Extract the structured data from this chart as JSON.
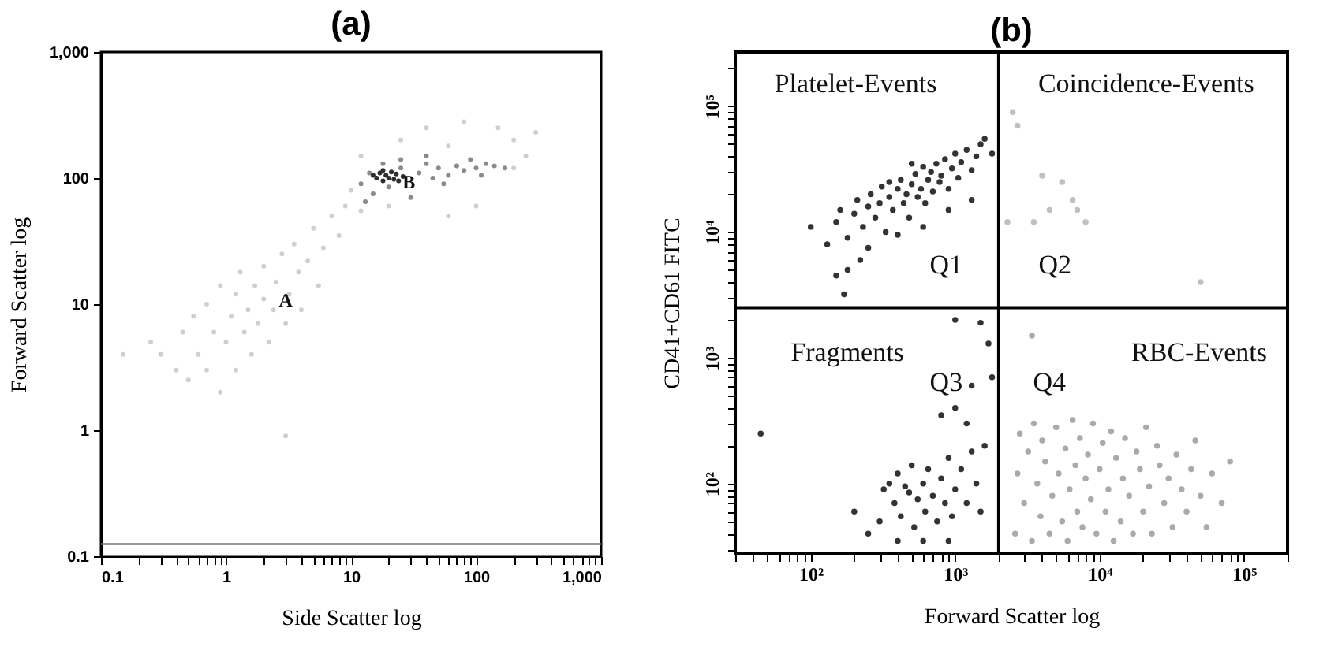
{
  "chart_data": [
    {
      "type": "scatter",
      "title": "(a)",
      "xlabel": "Side Scatter log",
      "ylabel": "Forward Scatter log",
      "log": "xy",
      "marker": "circle",
      "xlim": [
        0.1,
        1000
      ],
      "ylim": [
        0.1,
        1000
      ],
      "xticks": [
        0.1,
        {
          "value": 0.2,
          "label": null
        },
        {
          "value": 0.3,
          "label": null
        },
        {
          "value": 0.4,
          "label": null
        },
        {
          "value": 0.5,
          "label": null
        },
        {
          "value": 0.6,
          "label": null
        },
        {
          "value": 0.7,
          "label": null
        },
        {
          "value": 0.8,
          "label": null
        },
        {
          "value": 0.9,
          "label": null
        },
        1,
        {
          "value": 2,
          "label": null
        },
        {
          "value": 3,
          "label": null
        },
        {
          "value": 4,
          "label": null
        },
        {
          "value": 5,
          "label": null
        },
        {
          "value": 6,
          "label": null
        },
        {
          "value": 7,
          "label": null
        },
        {
          "value": 8,
          "label": null
        },
        {
          "value": 9,
          "label": null
        },
        10,
        {
          "value": 20,
          "label": null
        },
        {
          "value": 30,
          "label": null
        },
        {
          "value": 40,
          "label": null
        },
        {
          "value": 50,
          "label": null
        },
        {
          "value": 60,
          "label": null
        },
        {
          "value": 70,
          "label": null
        },
        {
          "value": 80,
          "label": null
        },
        {
          "value": 90,
          "label": null
        },
        100,
        {
          "value": 200,
          "label": null
        },
        {
          "value": 300,
          "label": null
        },
        {
          "value": 400,
          "label": null
        },
        {
          "value": 500,
          "label": null
        },
        {
          "value": 600,
          "label": null
        },
        {
          "value": 700,
          "label": null
        },
        {
          "value": 800,
          "label": null
        },
        {
          "value": 900,
          "label": null
        },
        {
          "value": 1000,
          "label": "1,000"
        }
      ],
      "yticks": [
        0.1,
        1,
        10,
        100,
        {
          "value": 1000,
          "label": "1,000"
        }
      ],
      "ref_lines": [
        {
          "axis": "y",
          "value": 0.125,
          "color": "#777777"
        }
      ],
      "annotations": [
        {
          "text": "A",
          "x": 3,
          "y": 10.7
        },
        {
          "text": "B",
          "x": 29,
          "y": 93
        }
      ],
      "series": [
        {
          "color": "#cfcfcf",
          "x": [
            0.25,
            0.3,
            0.4,
            0.45,
            0.5,
            0.55,
            0.6,
            0.7,
            0.7,
            0.8,
            0.9,
            0.9,
            1,
            1.1,
            1.2,
            1.2,
            1.3,
            1.4,
            1.5,
            1.6,
            1.7,
            1.8,
            2,
            2,
            2.2,
            2.4,
            2.5,
            2.8,
            3,
            3.2,
            3.5,
            3.8,
            4,
            4.5,
            5,
            5.5,
            6,
            7,
            8,
            9,
            3,
            10,
            12,
            12,
            20,
            25,
            40,
            60,
            80,
            150,
            200,
            250,
            300,
            100,
            60,
            0.15,
            200
          ],
          "values": [
            5,
            4,
            3,
            6,
            2.5,
            8,
            4,
            3,
            10,
            6,
            2,
            14,
            5,
            8,
            3,
            12,
            18,
            6,
            9,
            4,
            14,
            7,
            11,
            20,
            5,
            9,
            15,
            25,
            7,
            12,
            30,
            18,
            9,
            22,
            40,
            14,
            28,
            50,
            35,
            60,
            0.9,
            80,
            55,
            150,
            60,
            200,
            250,
            180,
            280,
            250,
            200,
            150,
            230,
            60,
            50,
            4,
            120
          ]
        },
        {
          "color": "#8a8a8a",
          "x": [
            12,
            14,
            15,
            18,
            20,
            25,
            35,
            40,
            45,
            50,
            60,
            70,
            80,
            100,
            120,
            140,
            170,
            90,
            30,
            13,
            55,
            110,
            40,
            25
          ],
          "values": [
            90,
            110,
            75,
            130,
            85,
            120,
            110,
            130,
            100,
            120,
            105,
            125,
            115,
            120,
            130,
            125,
            120,
            140,
            70,
            65,
            90,
            105,
            150,
            140
          ]
        },
        {
          "color": "#2e2e2e",
          "x": [
            16,
            17,
            18,
            19,
            20,
            21,
            22,
            23,
            15,
            18,
            24,
            26
          ],
          "values": [
            100,
            110,
            95,
            105,
            100,
            112,
            98,
            108,
            105,
            115,
            95,
            103
          ]
        }
      ]
    },
    {
      "type": "scatter",
      "title": "(b)",
      "xlabel": "Forward Scatter log",
      "ylabel": "CD41+CD61 FITC",
      "log": "xy",
      "marker": "circle",
      "xlim": [
        30,
        200000
      ],
      "ylim": [
        28,
        270000
      ],
      "xticks": [
        {
          "value": 30,
          "label": null
        },
        {
          "value": 40,
          "label": null
        },
        {
          "value": 50,
          "label": null
        },
        {
          "value": 60,
          "label": null
        },
        {
          "value": 70,
          "label": null
        },
        {
          "value": 80,
          "label": null
        },
        {
          "value": 90,
          "label": null
        },
        {
          "value": 100,
          "label": "10²"
        },
        {
          "value": 200,
          "label": null
        },
        {
          "value": 300,
          "label": null
        },
        {
          "value": 400,
          "label": null
        },
        {
          "value": 500,
          "label": null
        },
        {
          "value": 600,
          "label": null
        },
        {
          "value": 700,
          "label": null
        },
        {
          "value": 800,
          "label": null
        },
        {
          "value": 900,
          "label": null
        },
        {
          "value": 1000,
          "label": "10³"
        },
        {
          "value": 2000,
          "label": null
        },
        {
          "value": 3000,
          "label": null
        },
        {
          "value": 4000,
          "label": null
        },
        {
          "value": 5000,
          "label": null
        },
        {
          "value": 6000,
          "label": null
        },
        {
          "value": 7000,
          "label": null
        },
        {
          "value": 8000,
          "label": null
        },
        {
          "value": 9000,
          "label": null
        },
        {
          "value": 10000,
          "label": "10⁴"
        },
        {
          "value": 20000,
          "label": null
        },
        {
          "value": 30000,
          "label": null
        },
        {
          "value": 40000,
          "label": null
        },
        {
          "value": 50000,
          "label": null
        },
        {
          "value": 60000,
          "label": null
        },
        {
          "value": 70000,
          "label": null
        },
        {
          "value": 80000,
          "label": null
        },
        {
          "value": 90000,
          "label": null
        },
        {
          "value": 100000,
          "label": "10⁵"
        },
        {
          "value": 200000,
          "label": null
        }
      ],
      "yticks": [
        {
          "value": 30,
          "label": null
        },
        {
          "value": 40,
          "label": null
        },
        {
          "value": 50,
          "label": null
        },
        {
          "value": 60,
          "label": null
        },
        {
          "value": 70,
          "label": null
        },
        {
          "value": 80,
          "label": null
        },
        {
          "value": 90,
          "label": null
        },
        {
          "value": 100,
          "label": "10²"
        },
        {
          "value": 200,
          "label": null
        },
        {
          "value": 300,
          "label": null
        },
        {
          "value": 400,
          "label": null
        },
        {
          "value": 500,
          "label": null
        },
        {
          "value": 600,
          "label": null
        },
        {
          "value": 700,
          "label": null
        },
        {
          "value": 800,
          "label": null
        },
        {
          "value": 900,
          "label": null
        },
        {
          "value": 1000,
          "label": "10³"
        },
        {
          "value": 2000,
          "label": null
        },
        {
          "value": 3000,
          "label": null
        },
        {
          "value": 4000,
          "label": null
        },
        {
          "value": 5000,
          "label": null
        },
        {
          "value": 6000,
          "label": null
        },
        {
          "value": 7000,
          "label": null
        },
        {
          "value": 8000,
          "label": null
        },
        {
          "value": 9000,
          "label": null
        },
        {
          "value": 10000,
          "label": "10⁴"
        },
        {
          "value": 20000,
          "label": null
        },
        {
          "value": 30000,
          "label": null
        },
        {
          "value": 40000,
          "label": null
        },
        {
          "value": 50000,
          "label": null
        },
        {
          "value": 60000,
          "label": null
        },
        {
          "value": 70000,
          "label": null
        },
        {
          "value": 80000,
          "label": null
        },
        {
          "value": 90000,
          "label": null
        },
        {
          "value": 100000,
          "label": "10⁵"
        },
        {
          "value": 200000,
          "label": null
        }
      ],
      "ref_lines": [
        {
          "axis": "x",
          "value": 2000,
          "color": "#000000"
        },
        {
          "axis": "y",
          "value": 2500,
          "color": "#000000"
        }
      ],
      "annotations": [
        "Platelet-Events",
        "Coincidence-Events",
        "Q1",
        "Q2",
        "Fragments",
        "Q3",
        "Q4",
        "RBC-Events"
      ],
      "series": [
        {
          "color": "#333333",
          "x": [
            100,
            130,
            150,
            160,
            180,
            200,
            210,
            230,
            250,
            260,
            280,
            300,
            310,
            330,
            350,
            370,
            400,
            420,
            440,
            460,
            480,
            500,
            530,
            550,
            580,
            600,
            620,
            650,
            680,
            700,
            740,
            780,
            800,
            850,
            900,
            950,
            1000,
            1050,
            1100,
            1200,
            1300,
            1400,
            1500,
            1600,
            1800,
            150,
            170,
            220,
            250,
            400,
            600,
            1300,
            900,
            350,
            500,
            180
          ],
          "values": [
            11000,
            8000,
            12000,
            15000,
            9000,
            14000,
            18000,
            11000,
            16000,
            20000,
            13000,
            17000,
            23000,
            10000,
            19000,
            15000,
            22000,
            26000,
            17000,
            20000,
            13000,
            24000,
            29000,
            19000,
            22000,
            33000,
            17000,
            26000,
            30000,
            21000,
            35000,
            25000,
            28000,
            38000,
            22000,
            32000,
            42000,
            27000,
            36000,
            45000,
            31000,
            40000,
            50000,
            55000,
            42000,
            4500,
            3200,
            6000,
            7500,
            9500,
            11000,
            18000,
            15000,
            25000,
            35000,
            5000
          ]
        },
        {
          "color": "#c0c0c0",
          "x": [
            2500,
            2700,
            4000,
            5500,
            6500,
            7000,
            4500,
            8000,
            3500,
            50000,
            2300
          ],
          "values": [
            90000,
            70000,
            28000,
            25000,
            18000,
            15000,
            15000,
            12000,
            12000,
            4000,
            12000
          ]
        },
        {
          "color": "#333333",
          "x": [
            45,
            200,
            250,
            300,
            320,
            350,
            380,
            400,
            420,
            450,
            480,
            500,
            520,
            550,
            600,
            620,
            650,
            700,
            750,
            800,
            850,
            900,
            950,
            1000,
            1100,
            1200,
            1300,
            1400,
            1500,
            1600,
            400,
            600,
            900,
            1000,
            1200,
            800,
            1000,
            1500,
            1700,
            1800,
            1300
          ],
          "values": [
            250,
            60,
            40,
            50,
            90,
            100,
            70,
            120,
            55,
            95,
            85,
            140,
            45,
            75,
            100,
            60,
            130,
            80,
            50,
            110,
            70,
            160,
            55,
            90,
            130,
            70,
            180,
            100,
            60,
            200,
            35,
            35,
            35,
            400,
            300,
            350,
            2000,
            1900,
            1300,
            700,
            600
          ]
        },
        {
          "color": "#aaaaaa",
          "x": [
            2600,
            2700,
            2800,
            3000,
            3200,
            3400,
            3500,
            3700,
            3900,
            4000,
            4200,
            4500,
            4700,
            5000,
            5200,
            5500,
            5800,
            6000,
            6200,
            6500,
            6800,
            7000,
            7300,
            7600,
            8000,
            8300,
            8700,
            9000,
            9500,
            10000,
            10500,
            11000,
            11500,
            12000,
            12500,
            13000,
            14000,
            14500,
            15000,
            16000,
            17000,
            18000,
            19000,
            20000,
            21000,
            22000,
            23000,
            25000,
            26000,
            28000,
            30000,
            32000,
            34000,
            37000,
            40000,
            43000,
            46000,
            50000,
            55000,
            60000,
            70000,
            80000,
            3400
          ],
          "values": [
            40,
            120,
            250,
            70,
            180,
            35,
            300,
            100,
            55,
            220,
            150,
            40,
            80,
            280,
            120,
            50,
            190,
            35,
            90,
            320,
            140,
            60,
            230,
            45,
            110,
            170,
            75,
            300,
            40,
            130,
            210,
            60,
            90,
            260,
            35,
            160,
            50,
            110,
            230,
            80,
            40,
            180,
            130,
            60,
            280,
            95,
            40,
            200,
            140,
            70,
            110,
            45,
            170,
            90,
            60,
            130,
            220,
            80,
            45,
            120,
            70,
            150,
            1500
          ]
        }
      ]
    }
  ]
}
